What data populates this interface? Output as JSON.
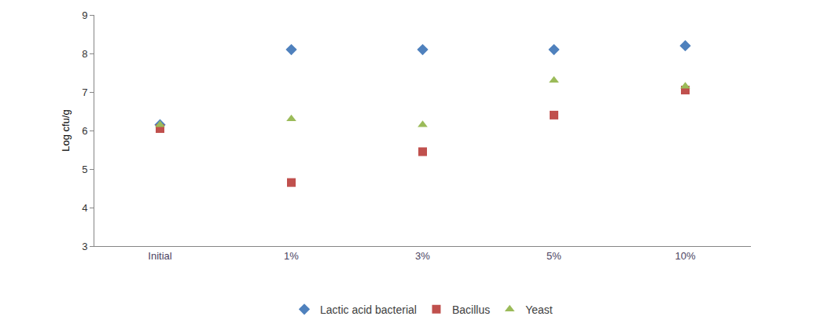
{
  "chart_data": {
    "type": "scatter",
    "y_label": "Log cfu/g",
    "categories": [
      "Initial",
      "1%",
      "3%",
      "5%",
      "10%"
    ],
    "series": [
      {
        "name": "Lactic acid bacterial",
        "color": "#4f81bd",
        "marker": "diamond",
        "values": [
          6.15,
          8.1,
          8.1,
          8.1,
          8.2
        ]
      },
      {
        "name": "Bacillus",
        "color": "#c0504d",
        "marker": "square",
        "values": [
          6.05,
          4.65,
          5.45,
          6.4,
          7.05
        ]
      },
      {
        "name": "Yeast",
        "color": "#9bbb59",
        "marker": "triangle-up",
        "values": [
          6.15,
          6.3,
          6.15,
          7.3,
          7.15
        ]
      }
    ],
    "ylim": [
      3,
      9
    ],
    "yticks": [
      3,
      4,
      5,
      6,
      7,
      8,
      9
    ],
    "grid": false,
    "legend": "bottom"
  }
}
